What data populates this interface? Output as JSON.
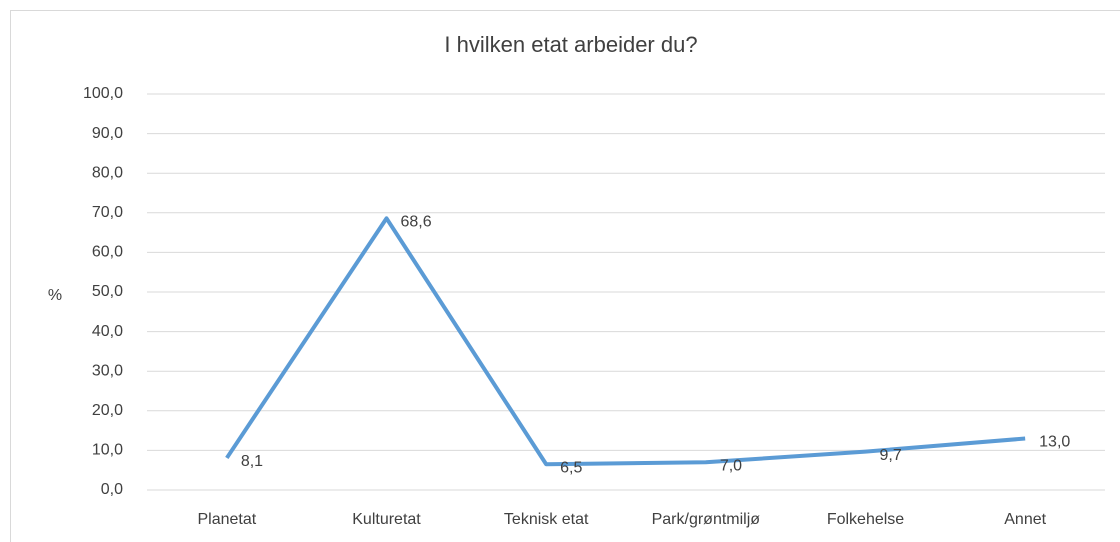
{
  "chart_data": {
    "type": "line",
    "title": "I hvilken etat arbeider du?",
    "y_label": "%",
    "categories": [
      "Planetat",
      "Kulturetat",
      "Teknisk etat",
      "Park/grøntmiljø",
      "Folkehelse",
      "Annet"
    ],
    "series": [
      {
        "name": "%",
        "color": "#5b9bd5",
        "values": [
          8.1,
          68.6,
          6.5,
          7.0,
          9.7,
          13.0
        ],
        "value_labels": [
          "8,1",
          "68,6",
          "6,5",
          "7,0",
          "9,7",
          "13,0"
        ]
      }
    ],
    "ylim": [
      0,
      100
    ],
    "yticks": [
      {
        "value": 0,
        "label": "0,0"
      },
      {
        "value": 10,
        "label": "10,0"
      },
      {
        "value": 20,
        "label": "20,0"
      },
      {
        "value": 30,
        "label": "30,0"
      },
      {
        "value": 40,
        "label": "40,0"
      },
      {
        "value": 50,
        "label": "50,0"
      },
      {
        "value": 60,
        "label": "60,0"
      },
      {
        "value": 70,
        "label": "70,0"
      },
      {
        "value": 80,
        "label": "80,0"
      },
      {
        "value": 90,
        "label": "90,0"
      },
      {
        "value": 100,
        "label": "100,0"
      }
    ],
    "grid": true
  }
}
